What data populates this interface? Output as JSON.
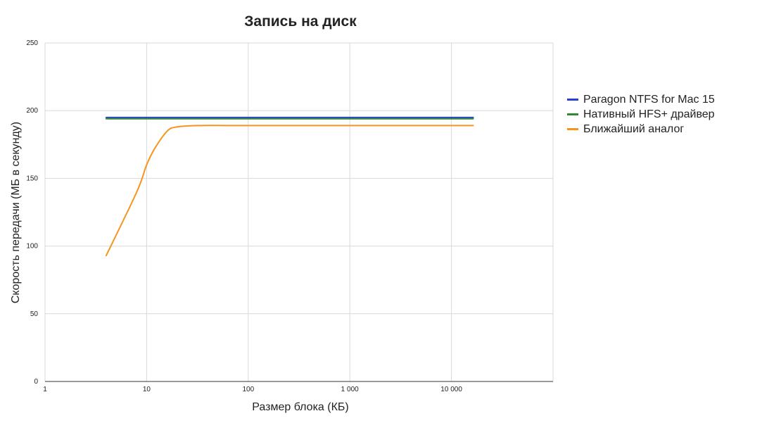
{
  "chart_data": {
    "type": "line",
    "title": "Запись на диск",
    "xlabel": "Размер блока (КБ)",
    "ylabel": "Скорость передачи (МБ в секунду)",
    "x_scale": "log",
    "xlim": [
      1,
      100000
    ],
    "ylim": [
      0,
      250
    ],
    "x_ticks": [
      {
        "value": 1,
        "label": "1"
      },
      {
        "value": 10,
        "label": "10"
      },
      {
        "value": 100,
        "label": "100"
      },
      {
        "value": 1000,
        "label": "1 000"
      },
      {
        "value": 10000,
        "label": "10 000"
      }
    ],
    "y_ticks": [
      {
        "value": 0,
        "label": "0"
      },
      {
        "value": 50,
        "label": "50"
      },
      {
        "value": 100,
        "label": "100"
      },
      {
        "value": 150,
        "label": "150"
      },
      {
        "value": 200,
        "label": "200"
      },
      {
        "value": 250,
        "label": "250"
      }
    ],
    "grid": true,
    "legend_position": "right",
    "x": [
      4,
      8,
      10,
      12,
      16,
      20,
      32,
      64,
      128,
      256,
      512,
      1024,
      4096,
      16384
    ],
    "series": [
      {
        "name": "Paragon NTFS for Mac 15",
        "color": "#2a3fcf",
        "values": [
          195,
          195,
          195,
          195,
          195,
          195,
          195,
          195,
          195,
          195,
          195,
          195,
          195,
          195
        ]
      },
      {
        "name": "Нативный HFS+ драйвер",
        "color": "#2e8b2e",
        "values": [
          194,
          194,
          194,
          194,
          194,
          194,
          194,
          194,
          194,
          194,
          194,
          194,
          194,
          194
        ]
      },
      {
        "name": "Ближайший аналог",
        "color": "#f7941d",
        "values": [
          93,
          140,
          160,
          172,
          185,
          188,
          189,
          189,
          189,
          189,
          189,
          189,
          189,
          189
        ]
      }
    ]
  }
}
